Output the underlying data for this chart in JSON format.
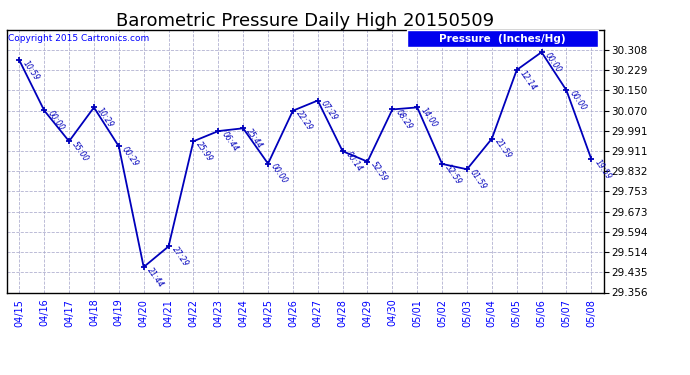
{
  "title": "Barometric Pressure Daily High 20150509",
  "copyright": "Copyright 2015 Cartronics.com",
  "legend_label": "Pressure  (Inches/Hg)",
  "dates": [
    "04/15",
    "04/16",
    "04/17",
    "04/18",
    "04/19",
    "04/20",
    "04/21",
    "04/22",
    "04/23",
    "04/24",
    "04/25",
    "04/26",
    "04/27",
    "04/28",
    "04/29",
    "04/30",
    "05/01",
    "05/02",
    "05/03",
    "05/04",
    "05/05",
    "05/06",
    "05/07",
    "05/08"
  ],
  "values": [
    30.268,
    30.071,
    29.95,
    30.083,
    29.93,
    29.456,
    29.537,
    29.95,
    29.99,
    30.001,
    29.862,
    30.07,
    30.11,
    29.911,
    29.87,
    30.075,
    30.083,
    29.861,
    29.84,
    29.96,
    30.23,
    30.3,
    30.15,
    29.88
  ],
  "times": [
    "10:59",
    "00:00",
    "55:00",
    "10:29",
    "00:29",
    "21:44",
    "27:29",
    "25:99",
    "06:44",
    "25:44",
    "00:00",
    "22:29",
    "07:29",
    "00:14",
    "52:59",
    "08:29",
    "14:00",
    "52:59",
    "01:59",
    "21:59",
    "12:14",
    "00:00",
    "00:00",
    "19:59"
  ],
  "line_color": "#0000bb",
  "marker_color": "#0000bb",
  "bg_color": "#ffffff",
  "grid_color": "#aaaacc",
  "ylim_min": 29.356,
  "ylim_max": 30.387,
  "yticks": [
    29.356,
    29.435,
    29.514,
    29.594,
    29.673,
    29.753,
    29.832,
    29.911,
    29.991,
    30.07,
    30.15,
    30.229,
    30.308
  ],
  "title_fontsize": 13,
  "legend_bg": "#0000ee",
  "legend_text_color": "#ffffff"
}
